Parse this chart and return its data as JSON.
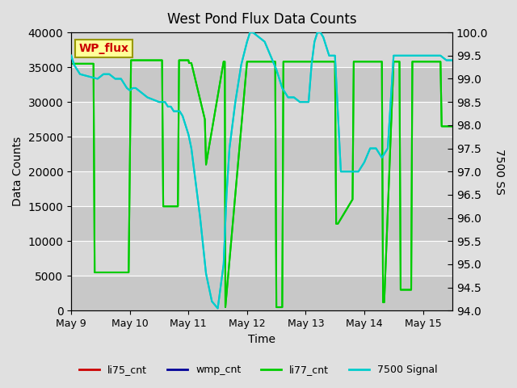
{
  "title": "West Pond Flux Data Counts",
  "xlabel": "Time",
  "ylabel_left": "Data Counts",
  "ylabel_right": "7500 SS",
  "bg_color": "#e0e0e0",
  "plot_bg_color": "#d4d4d4",
  "note_text": "WP_flux",
  "note_bg": "#ffff99",
  "note_border": "#999900",
  "legend_entries": [
    "li75_cnt",
    "wmp_cnt",
    "li77_cnt",
    "7500 Signal"
  ],
  "legend_colors": [
    "#cc0000",
    "#000099",
    "#00cc00",
    "#00cccc"
  ],
  "ylim_left": [
    0,
    40000
  ],
  "ylim_right": [
    94.0,
    100.0
  ],
  "yticks_left": [
    0,
    5000,
    10000,
    15000,
    20000,
    25000,
    30000,
    35000,
    40000
  ],
  "yticks_right": [
    94.0,
    94.5,
    95.0,
    95.5,
    96.0,
    96.5,
    97.0,
    97.5,
    98.0,
    98.5,
    99.0,
    99.5,
    100.0
  ],
  "xtick_positions": [
    0,
    1,
    2,
    3,
    4,
    5,
    6
  ],
  "xtick_labels": [
    "May 9",
    "May 10",
    "May 11",
    "May 12",
    "May 13",
    "May 14",
    "May 15"
  ],
  "xlim": [
    0,
    6.5
  ],
  "li77_color": "#00cc00",
  "signal_color": "#00cccc",
  "li77_x": [
    0,
    0.02,
    0.38,
    0.4,
    0.98,
    1.02,
    1.02,
    1.55,
    1.57,
    1.82,
    1.84,
    2.0,
    2.01,
    2.05,
    2.28,
    2.3,
    2.6,
    2.62,
    2.63,
    3.0,
    3.01,
    3.02,
    3.48,
    3.5,
    3.6,
    3.62,
    4.0,
    4.01,
    4.02,
    4.5,
    4.52,
    4.55,
    4.8,
    4.82,
    4.83,
    5.0,
    5.01,
    5.3,
    5.32,
    5.34,
    5.5,
    5.52,
    5.6,
    5.62,
    5.8,
    5.82,
    6.0,
    6.02,
    6.3,
    6.32,
    6.5
  ],
  "li77_y": [
    35500,
    35500,
    35500,
    5500,
    5500,
    36000,
    36000,
    36000,
    15000,
    15000,
    36000,
    36000,
    35600,
    35600,
    27500,
    21000,
    35800,
    35800,
    500,
    35800,
    35800,
    35800,
    35800,
    500,
    500,
    35800,
    35800,
    35800,
    35800,
    35800,
    12500,
    12500,
    16000,
    35800,
    35800,
    35800,
    35800,
    35800,
    1200,
    1200,
    35800,
    35800,
    35800,
    3000,
    3000,
    35800,
    35800,
    35800,
    35800,
    26500,
    26500
  ],
  "sig_x": [
    0.0,
    0.05,
    0.15,
    0.3,
    0.45,
    0.55,
    0.65,
    0.75,
    0.85,
    0.9,
    0.95,
    1.0,
    1.05,
    1.1,
    1.2,
    1.3,
    1.4,
    1.5,
    1.6,
    1.65,
    1.7,
    1.75,
    1.8,
    1.85,
    1.9,
    1.95,
    2.0,
    2.05,
    2.1,
    2.2,
    2.3,
    2.4,
    2.5,
    2.6,
    2.65,
    2.7,
    2.8,
    2.9,
    3.0,
    3.05,
    3.1,
    3.2,
    3.3,
    3.4,
    3.5,
    3.55,
    3.6,
    3.65,
    3.7,
    3.8,
    3.9,
    4.0,
    4.05,
    4.1,
    4.15,
    4.2,
    4.25,
    4.3,
    4.35,
    4.4,
    4.5,
    4.6,
    4.7,
    4.8,
    4.9,
    5.0,
    5.1,
    5.2,
    5.3,
    5.4,
    5.5,
    5.6,
    5.7,
    5.8,
    5.9,
    6.0,
    6.1,
    6.2,
    6.3,
    6.4,
    6.5
  ],
  "sig_y": [
    99.5,
    99.3,
    99.1,
    99.05,
    99.0,
    99.1,
    99.1,
    99.0,
    99.0,
    98.9,
    98.8,
    98.75,
    98.8,
    98.8,
    98.7,
    98.6,
    98.55,
    98.5,
    98.5,
    98.4,
    98.4,
    98.3,
    98.3,
    98.3,
    98.2,
    98.0,
    97.8,
    97.5,
    97.0,
    96.0,
    94.8,
    94.2,
    94.05,
    95.0,
    96.5,
    97.5,
    98.5,
    99.3,
    99.8,
    100.0,
    100.0,
    99.9,
    99.8,
    99.5,
    99.2,
    99.0,
    98.8,
    98.7,
    98.6,
    98.6,
    98.5,
    98.5,
    98.5,
    99.3,
    99.8,
    100.0,
    100.0,
    99.9,
    99.7,
    99.5,
    99.5,
    97.0,
    97.0,
    97.0,
    97.0,
    97.2,
    97.5,
    97.5,
    97.3,
    97.5,
    99.5,
    99.5,
    99.5,
    99.5,
    99.5,
    99.5,
    99.5,
    99.5,
    99.5,
    99.4,
    99.4
  ]
}
